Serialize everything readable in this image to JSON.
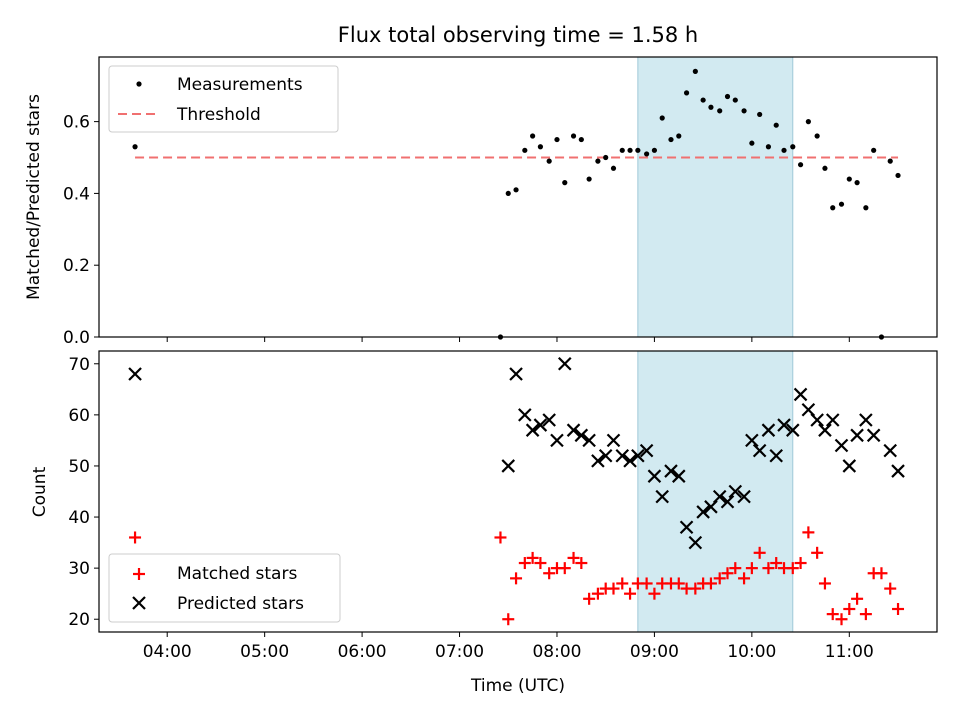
{
  "title": "Flux total observing time = 1.58 h",
  "x_axis": {
    "label": "Time (UTC)",
    "range_hours": [
      3.3,
      11.9
    ],
    "ticks": [
      {
        "v": 4,
        "label": "04:00"
      },
      {
        "v": 5,
        "label": "05:00"
      },
      {
        "v": 6,
        "label": "06:00"
      },
      {
        "v": 7,
        "label": "07:00"
      },
      {
        "v": 8,
        "label": "08:00"
      },
      {
        "v": 9,
        "label": "09:00"
      },
      {
        "v": 10,
        "label": "10:00"
      },
      {
        "v": 11,
        "label": "11:00"
      }
    ]
  },
  "highlight_span_hours": [
    8.83,
    10.42
  ],
  "colors": {
    "measurements": "#000000",
    "threshold": "#f07070",
    "matched": "#ff0000",
    "predicted": "#000000",
    "highlight": "#add8e6"
  },
  "chart_data": [
    {
      "type": "scatter",
      "ylabel": "Matched/Predicted stars",
      "ylim": [
        0,
        0.78
      ],
      "yticks": [
        "0.0",
        "0.2",
        "0.4",
        "0.6"
      ],
      "legend": {
        "placement": "top-left",
        "entries": [
          "Measurements",
          "Threshold"
        ]
      },
      "series": [
        {
          "name": "Measurements",
          "marker": "dot",
          "x": [
            3.67,
            7.42,
            7.5,
            7.58,
            7.67,
            7.75,
            7.83,
            7.92,
            8.0,
            8.08,
            8.17,
            8.25,
            8.33,
            8.42,
            8.5,
            8.58,
            8.67,
            8.75,
            8.83,
            8.92,
            9.0,
            9.08,
            9.17,
            9.25,
            9.33,
            9.42,
            9.5,
            9.58,
            9.67,
            9.75,
            9.83,
            9.92,
            10.0,
            10.08,
            10.17,
            10.25,
            10.33,
            10.42,
            10.5,
            10.58,
            10.67,
            10.75,
            10.83,
            10.92,
            11.0,
            11.08,
            11.17,
            11.25,
            11.33,
            11.42,
            11.5
          ],
          "y": [
            0.53,
            0.0,
            0.4,
            0.41,
            0.52,
            0.56,
            0.53,
            0.49,
            0.55,
            0.43,
            0.56,
            0.55,
            0.44,
            0.49,
            0.5,
            0.47,
            0.52,
            0.52,
            0.52,
            0.51,
            0.52,
            0.61,
            0.55,
            0.56,
            0.68,
            0.74,
            0.66,
            0.64,
            0.63,
            0.67,
            0.66,
            0.63,
            0.54,
            0.62,
            0.53,
            0.59,
            0.52,
            0.53,
            0.48,
            0.6,
            0.56,
            0.47,
            0.36,
            0.37,
            0.44,
            0.43,
            0.36,
            0.52,
            0.0,
            0.49,
            0.45
          ]
        },
        {
          "name": "Threshold",
          "line": "dashed",
          "x": [
            3.67,
            11.5
          ],
          "y": [
            0.5,
            0.5
          ]
        }
      ]
    },
    {
      "type": "scatter",
      "ylabel": "Count",
      "ylim": [
        17.5,
        72.5
      ],
      "yticks": [
        "20",
        "30",
        "40",
        "50",
        "60",
        "70"
      ],
      "legend": {
        "placement": "bottom-left",
        "entries": [
          "Matched stars",
          "Predicted stars"
        ]
      },
      "series": [
        {
          "name": "Matched stars",
          "marker": "plus",
          "x": [
            3.67,
            7.42,
            7.5,
            7.58,
            7.67,
            7.75,
            7.83,
            7.92,
            8.0,
            8.08,
            8.17,
            8.25,
            8.33,
            8.42,
            8.5,
            8.58,
            8.67,
            8.75,
            8.83,
            8.92,
            9.0,
            9.08,
            9.17,
            9.25,
            9.33,
            9.42,
            9.5,
            9.58,
            9.67,
            9.75,
            9.83,
            9.92,
            10.0,
            10.08,
            10.17,
            10.25,
            10.33,
            10.42,
            10.5,
            10.58,
            10.67,
            10.75,
            10.83,
            10.92,
            11.0,
            11.08,
            11.17,
            11.25,
            11.33,
            11.42,
            11.5
          ],
          "y": [
            36,
            36,
            20,
            28,
            31,
            32,
            31,
            29,
            30,
            30,
            32,
            31,
            24,
            25,
            26,
            26,
            27,
            25,
            27,
            27,
            25,
            27,
            27,
            27,
            26,
            26,
            27,
            27,
            28,
            29,
            30,
            28,
            30,
            33,
            30,
            31,
            30,
            30,
            31,
            37,
            33,
            27,
            21,
            20,
            22,
            24,
            21,
            29,
            29,
            26,
            22
          ]
        },
        {
          "name": "Predicted stars",
          "marker": "x",
          "x": [
            3.67,
            7.5,
            7.58,
            7.67,
            7.75,
            7.83,
            7.92,
            8.0,
            8.08,
            8.17,
            8.25,
            8.33,
            8.42,
            8.5,
            8.58,
            8.67,
            8.75,
            8.83,
            8.92,
            9.0,
            9.08,
            9.17,
            9.25,
            9.33,
            9.42,
            9.5,
            9.58,
            9.67,
            9.75,
            9.83,
            9.92,
            10.0,
            10.08,
            10.17,
            10.25,
            10.33,
            10.42,
            10.5,
            10.58,
            10.67,
            10.75,
            10.83,
            10.92,
            11.0,
            11.08,
            11.17,
            11.25,
            11.42,
            11.5
          ],
          "y": [
            68,
            50,
            68,
            60,
            57,
            58,
            59,
            55,
            70,
            57,
            56,
            55,
            51,
            52,
            55,
            52,
            51,
            52,
            53,
            48,
            44,
            49,
            48,
            38,
            35,
            41,
            42,
            44,
            43,
            45,
            44,
            55,
            53,
            57,
            52,
            58,
            57,
            64,
            61,
            59,
            57,
            59,
            54,
            50,
            56,
            59,
            56,
            53,
            49
          ]
        }
      ]
    }
  ]
}
